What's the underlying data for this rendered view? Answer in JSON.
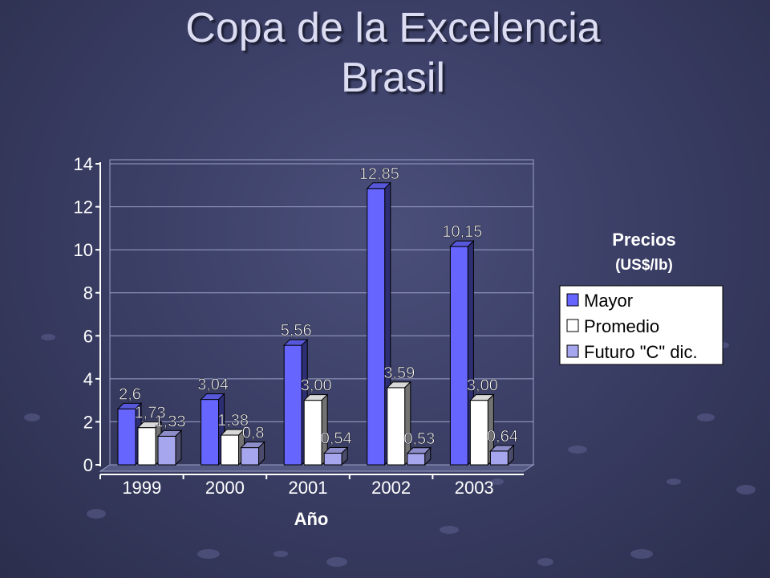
{
  "slide": {
    "title_line1": "Copa de la Excelencia",
    "title_line2": "Brasil"
  },
  "chart_data": {
    "type": "bar",
    "categories": [
      "1999",
      "2000",
      "2001",
      "2002",
      "2003"
    ],
    "series": [
      {
        "name": "Mayor",
        "values": [
          2.6,
          3.04,
          5.56,
          12.85,
          10.15
        ],
        "labels": [
          "2,6",
          "3,04",
          "5,56",
          "12,85",
          "10,15"
        ],
        "color": "#6666ff"
      },
      {
        "name": "Promedio",
        "values": [
          1.73,
          1.38,
          3.0,
          3.59,
          3.0
        ],
        "labels": [
          "1,73",
          "1,38",
          "3,00",
          "3,59",
          "3,00"
        ],
        "color": "#ffffff"
      },
      {
        "name": "Futuro \"C\" dic.",
        "values": [
          1.33,
          0.8,
          0.54,
          0.53,
          0.64
        ],
        "labels": [
          "1,33",
          "0,8",
          "0,54",
          "0,53",
          "0,64"
        ],
        "color": "#a6a6ee"
      }
    ],
    "xlabel": "Año",
    "ylabel": "",
    "ylim": [
      0,
      14
    ],
    "yticks": [
      0,
      2,
      4,
      6,
      8,
      10,
      12,
      14
    ],
    "legend_title": "Precios",
    "legend_subtitle": "(US$/lb)",
    "legend_position": "right",
    "grid": true
  }
}
